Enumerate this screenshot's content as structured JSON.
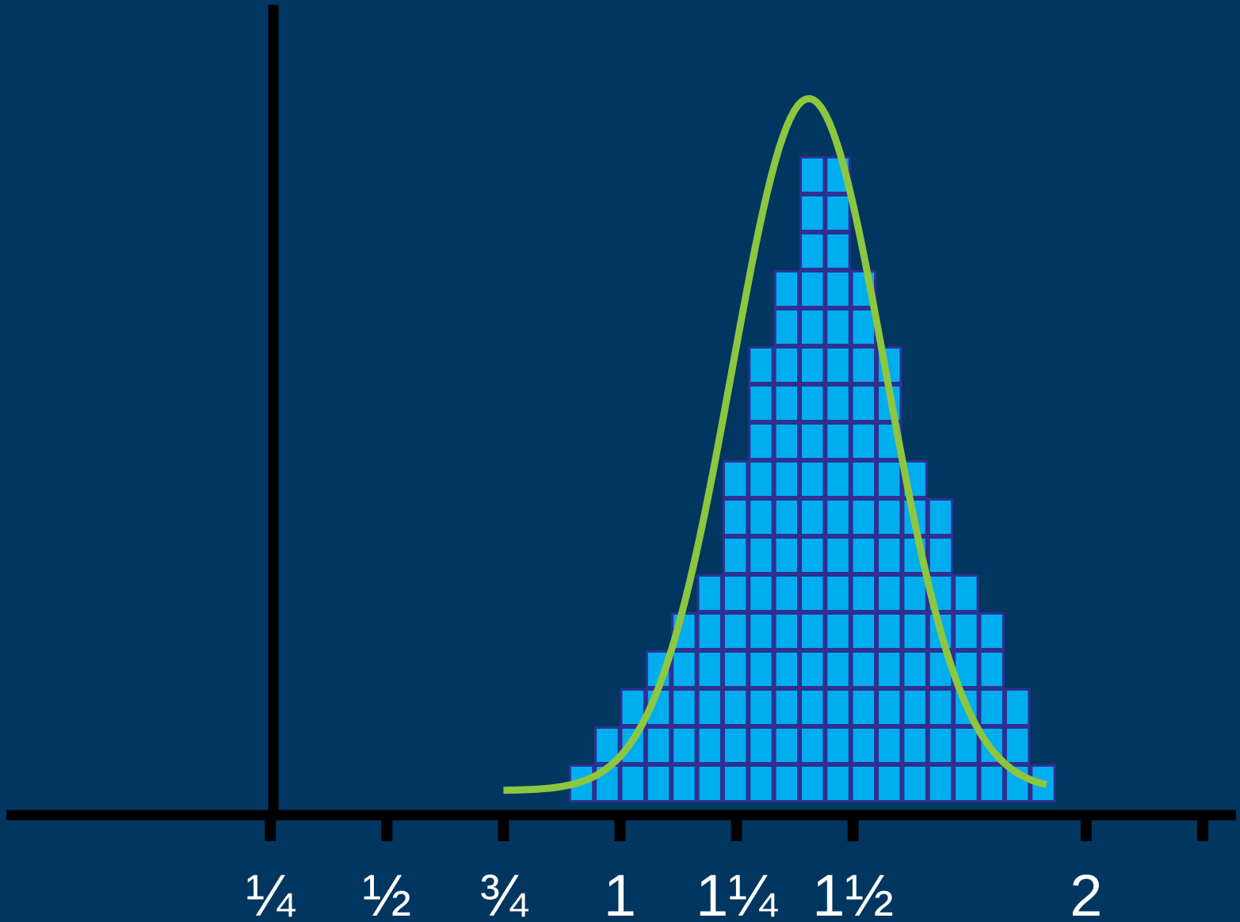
{
  "chart_data": {
    "type": "bar",
    "title": "",
    "xlabel": "",
    "ylabel": "",
    "x_ticks": [
      {
        "value": 0.25,
        "label": "¼"
      },
      {
        "value": 0.5,
        "label": "½"
      },
      {
        "value": 0.75,
        "label": "¾"
      },
      {
        "value": 1,
        "label": "1"
      },
      {
        "value": 1.25,
        "label": "1¼"
      },
      {
        "value": 1.5,
        "label": "1½"
      },
      {
        "value": 2,
        "label": "2"
      },
      {
        "value": 2.25,
        "label": ""
      }
    ],
    "bin_width": 0.055,
    "bin_starts": [
      0.89,
      0.945,
      1.0,
      1.055,
      1.11,
      1.165,
      1.22,
      1.275,
      1.33,
      1.385,
      1.44,
      1.495,
      1.55,
      1.605,
      1.66,
      1.715,
      1.77,
      1.825,
      1.88
    ],
    "counts": [
      1,
      2,
      3,
      4,
      5,
      6,
      9,
      12,
      14,
      17,
      17,
      14,
      12,
      9,
      8,
      6,
      5,
      3,
      1
    ],
    "curve": {
      "type": "normal",
      "mean": 1.405,
      "peak_count": 18.2,
      "sd": 0.165,
      "x_range": [
        0.75,
        1.915
      ]
    },
    "ylim": [
      0,
      21
    ],
    "xlim": [
      -0.33,
      2.33
    ],
    "grid": false,
    "colors": {
      "background": "#003660",
      "bar_fill": "#00aeef",
      "bar_stroke": "#2e3192",
      "curve": "#8dc63f",
      "axis": "#000000",
      "tick_label": "#ffffff"
    }
  }
}
